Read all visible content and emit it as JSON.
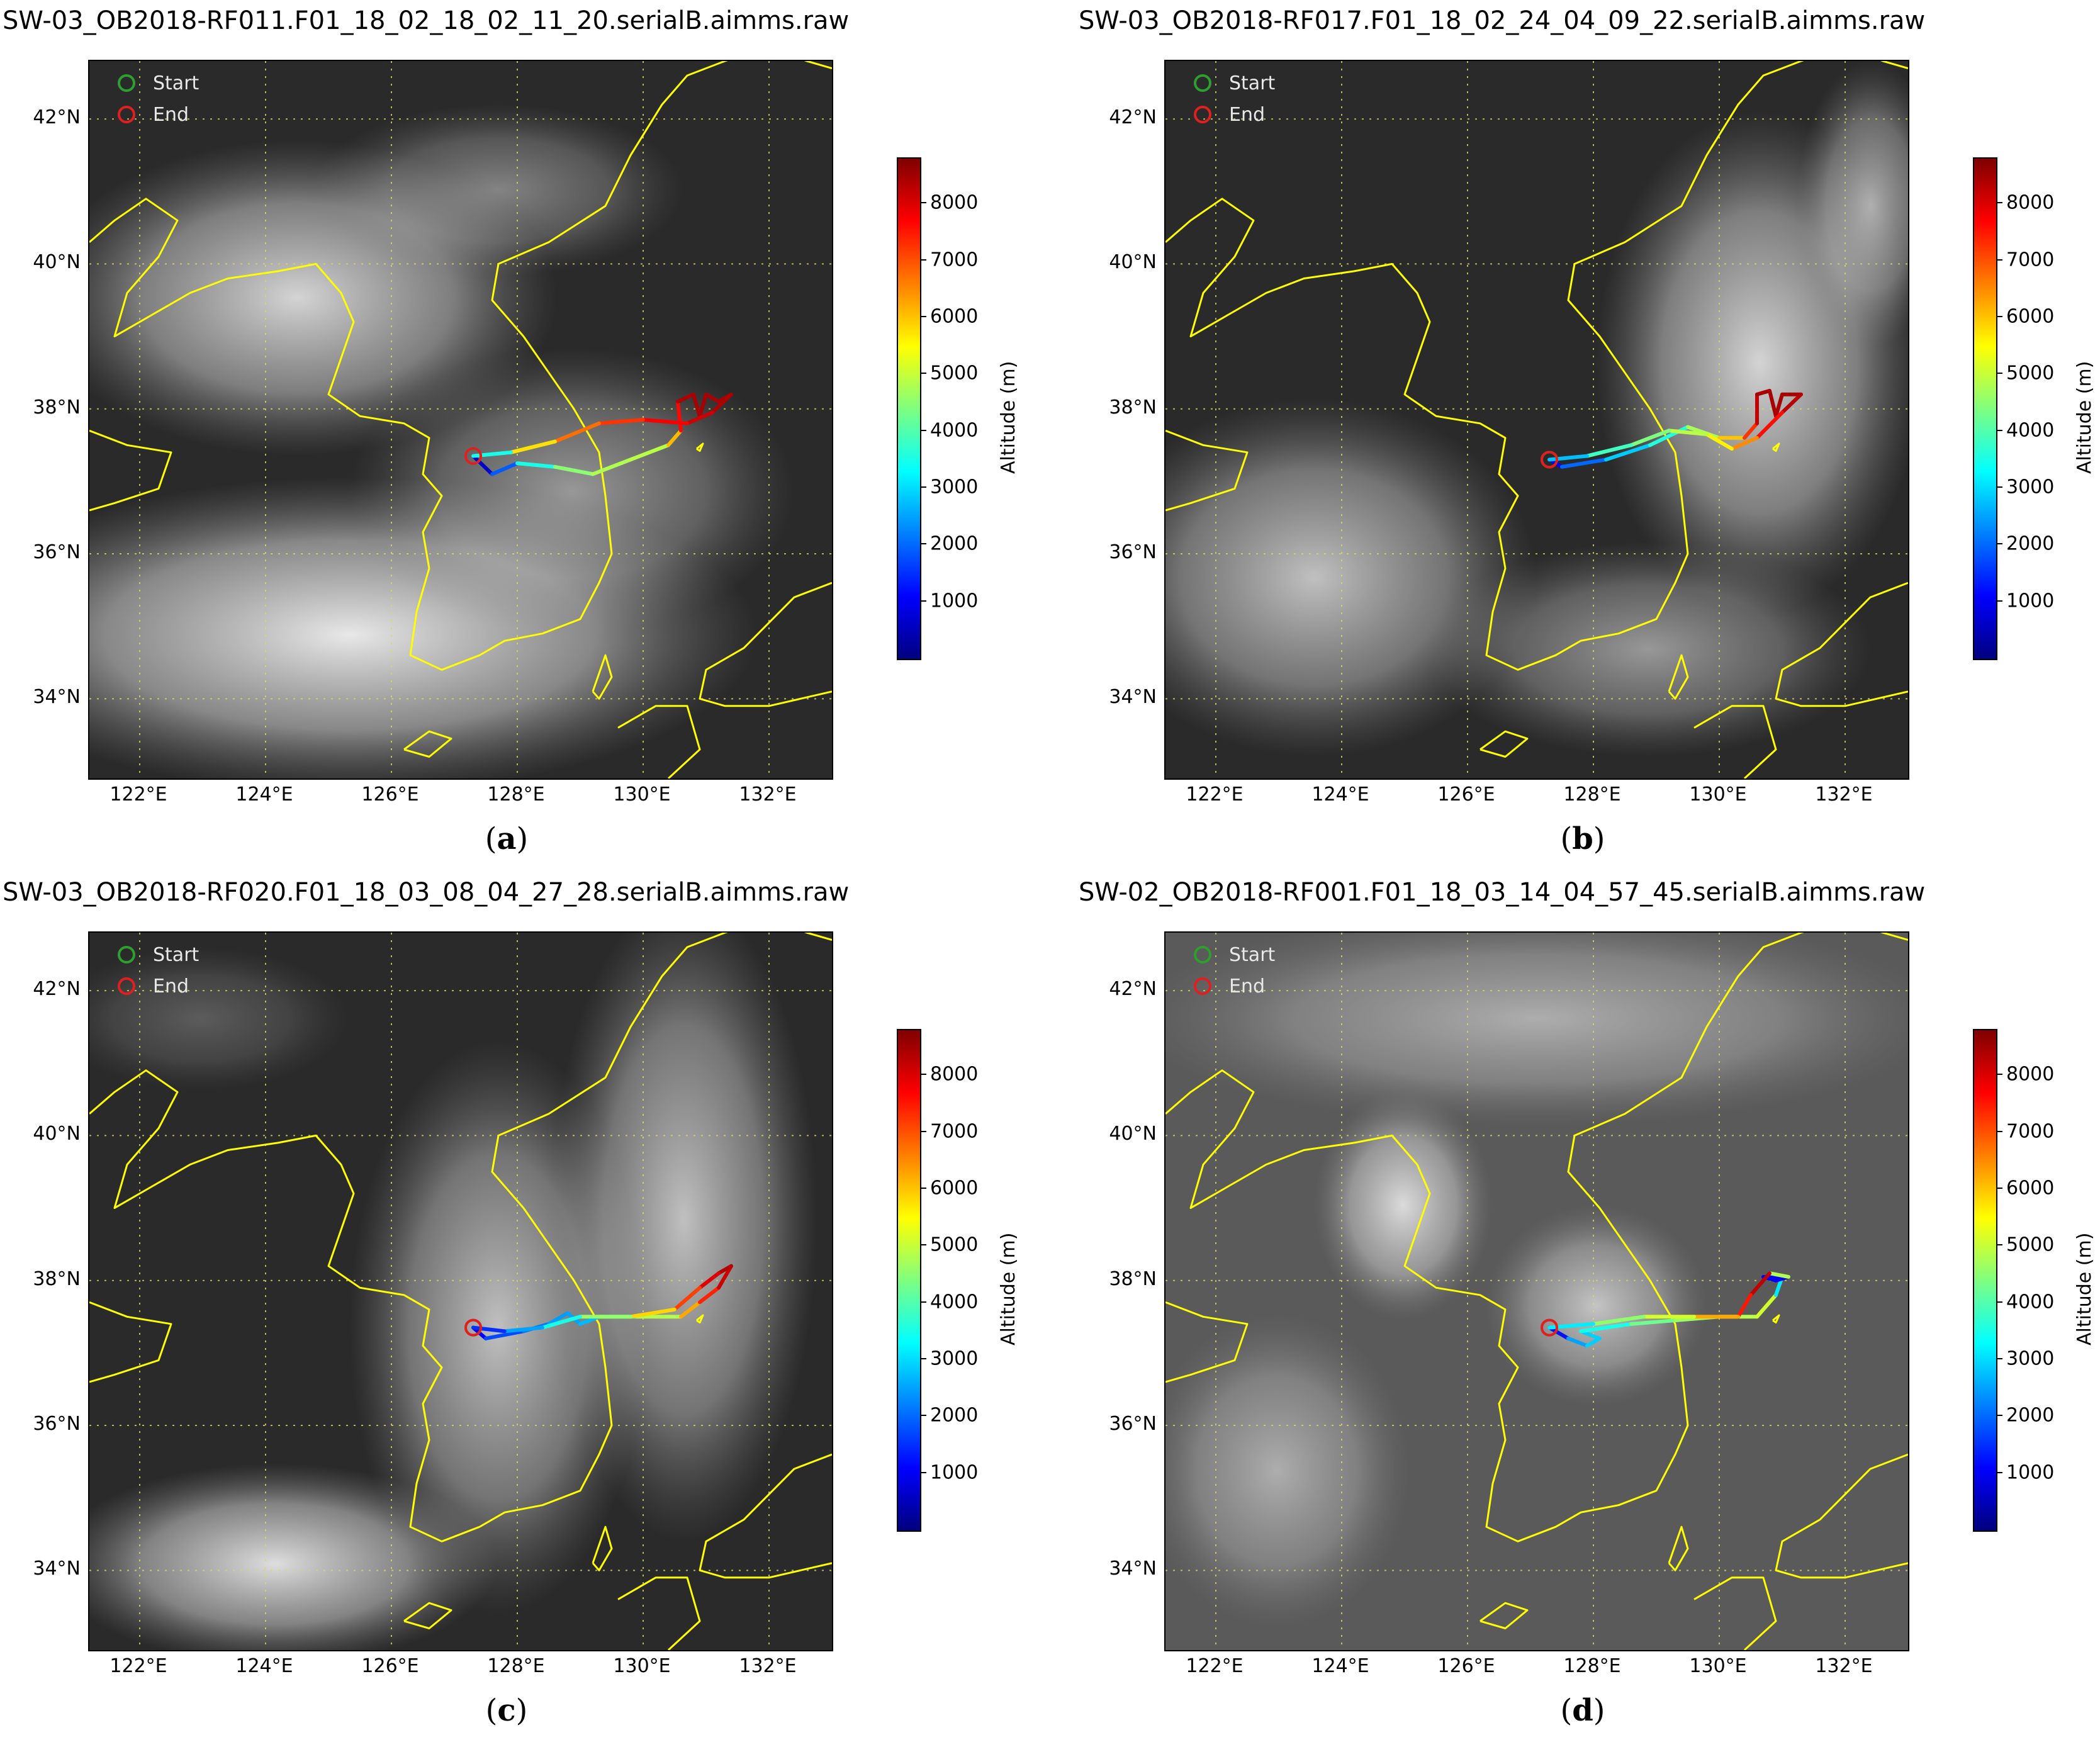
{
  "panels": [
    {
      "id": "a",
      "title": "SW-03_OB2018-RF011.F01_18_02_18_02_11_20.serialB.aimms.raw",
      "letter": "a",
      "brightness": "cloudy-north-south",
      "track": [
        [
          127.3,
          37.35
        ],
        [
          127.6,
          37.1
        ],
        [
          128.0,
          37.25
        ],
        [
          128.6,
          37.2
        ],
        [
          129.2,
          37.1
        ],
        [
          129.8,
          37.3
        ],
        [
          130.4,
          37.5
        ],
        [
          130.6,
          37.7
        ],
        [
          130.55,
          38.1
        ],
        [
          130.8,
          38.2
        ],
        [
          130.9,
          37.9
        ],
        [
          131.0,
          38.2
        ],
        [
          131.2,
          38.1
        ],
        [
          131.4,
          38.2
        ],
        [
          131.1,
          37.95
        ],
        [
          130.7,
          37.8
        ],
        [
          130.0,
          37.85
        ],
        [
          129.3,
          37.8
        ],
        [
          128.6,
          37.55
        ],
        [
          127.9,
          37.4
        ],
        [
          127.3,
          37.35
        ]
      ],
      "track_alt": [
        500,
        800,
        3000,
        4000,
        5000,
        4600,
        5200,
        7000,
        8300,
        8500,
        8400,
        8500,
        8400,
        8500,
        8300,
        8000,
        7500,
        7000,
        6500,
        5000,
        2000
      ]
    },
    {
      "id": "b",
      "title": "SW-03_OB2018-RF017.F01_18_02_24_04_09_22.serialB.aimms.raw",
      "letter": "b",
      "brightness": "cloudy-east-sea",
      "track": [
        [
          127.3,
          37.3
        ],
        [
          127.5,
          37.2
        ],
        [
          128.2,
          37.3
        ],
        [
          128.9,
          37.5
        ],
        [
          129.5,
          37.75
        ],
        [
          130.0,
          37.6
        ],
        [
          130.4,
          37.6
        ],
        [
          130.6,
          37.8
        ],
        [
          130.6,
          38.2
        ],
        [
          130.8,
          38.25
        ],
        [
          130.9,
          37.9
        ],
        [
          131.0,
          38.2
        ],
        [
          131.3,
          38.2
        ],
        [
          131.0,
          37.95
        ],
        [
          130.6,
          37.6
        ],
        [
          130.2,
          37.45
        ],
        [
          129.8,
          37.65
        ],
        [
          129.2,
          37.7
        ],
        [
          128.6,
          37.5
        ],
        [
          127.9,
          37.35
        ],
        [
          127.3,
          37.3
        ]
      ],
      "track_alt": [
        500,
        1500,
        2500,
        3200,
        4000,
        5500,
        6500,
        8000,
        8400,
        8500,
        8400,
        8500,
        8400,
        8200,
        7000,
        6000,
        5200,
        4600,
        4200,
        3500,
        2000
      ]
    },
    {
      "id": "c",
      "title": "SW-03_OB2018-RF020.F01_18_03_08_04_27_28.serialB.aimms.raw",
      "letter": "c",
      "brightness": "streaks",
      "track": [
        [
          127.3,
          37.35
        ],
        [
          127.5,
          37.2
        ],
        [
          128.1,
          37.3
        ],
        [
          128.5,
          37.4
        ],
        [
          128.8,
          37.55
        ],
        [
          129.0,
          37.4
        ],
        [
          129.3,
          37.5
        ],
        [
          129.9,
          37.5
        ],
        [
          130.6,
          37.5
        ],
        [
          130.9,
          37.7
        ],
        [
          131.2,
          37.9
        ],
        [
          131.4,
          38.2
        ],
        [
          131.2,
          38.1
        ],
        [
          130.9,
          37.9
        ],
        [
          130.5,
          37.6
        ],
        [
          129.8,
          37.5
        ],
        [
          129.0,
          37.5
        ],
        [
          128.4,
          37.35
        ],
        [
          127.8,
          37.3
        ],
        [
          127.3,
          37.35
        ]
      ],
      "track_alt": [
        500,
        1500,
        2000,
        2300,
        2600,
        2400,
        3000,
        4200,
        5500,
        7000,
        7800,
        8500,
        8200,
        7800,
        6500,
        5200,
        4000,
        3000,
        2000,
        1000
      ]
    },
    {
      "id": "d",
      "title": "SW-02_OB2018-RF001.F01_18_03_14_04_57_45.serialB.aimms.raw",
      "letter": "d",
      "brightness": "grey-haze",
      "track": [
        [
          127.3,
          37.35
        ],
        [
          127.6,
          37.2
        ],
        [
          127.9,
          37.1
        ],
        [
          128.1,
          37.2
        ],
        [
          127.8,
          37.3
        ],
        [
          128.6,
          37.4
        ],
        [
          129.3,
          37.45
        ],
        [
          130.0,
          37.5
        ],
        [
          130.6,
          37.5
        ],
        [
          130.9,
          37.8
        ],
        [
          131.0,
          38.05
        ],
        [
          130.7,
          38.05
        ],
        [
          130.9,
          38.0
        ],
        [
          131.1,
          38.05
        ],
        [
          130.8,
          38.1
        ],
        [
          130.5,
          37.8
        ],
        [
          130.3,
          37.5
        ],
        [
          129.6,
          37.5
        ],
        [
          128.8,
          37.5
        ],
        [
          128.0,
          37.4
        ],
        [
          127.3,
          37.35
        ]
      ],
      "track_alt": [
        500,
        2000,
        3000,
        2800,
        3000,
        4000,
        4500,
        4800,
        5000,
        5200,
        1000,
        1200,
        900,
        1100,
        8500,
        8000,
        7000,
        5500,
        4800,
        4300,
        2000
      ]
    }
  ],
  "lon_ticks": [
    "122°E",
    "124°E",
    "126°E",
    "128°E",
    "130°E",
    "132°E"
  ],
  "lon_values": [
    122,
    124,
    126,
    128,
    130,
    132
  ],
  "lat_ticks": [
    "42°N",
    "40°N",
    "38°N",
    "36°N",
    "34°N"
  ],
  "lat_values": [
    42,
    40,
    38,
    36,
    34
  ],
  "extent": {
    "lon_min": 121.2,
    "lon_max": 133.0,
    "lat_min": 32.9,
    "lat_max": 42.8
  },
  "legend": {
    "start_label": "Start",
    "end_label": "End",
    "start_color": "#2e9e2e",
    "end_color": "#e02020"
  },
  "colorbar": {
    "label": "Altitude (m)",
    "ticks": [
      "8000",
      "7000",
      "6000",
      "5000",
      "4000",
      "3000",
      "2000",
      "1000"
    ],
    "tick_values": [
      8000,
      7000,
      6000,
      5000,
      4000,
      3000,
      2000,
      1000
    ],
    "min": 0,
    "max": 8800,
    "colors": [
      "#00007f",
      "#0000ff",
      "#007fff",
      "#00ffff",
      "#7fff7f",
      "#ffff00",
      "#ff7f00",
      "#ff0000",
      "#7f0000"
    ]
  },
  "coast_color": "#ffff00"
}
